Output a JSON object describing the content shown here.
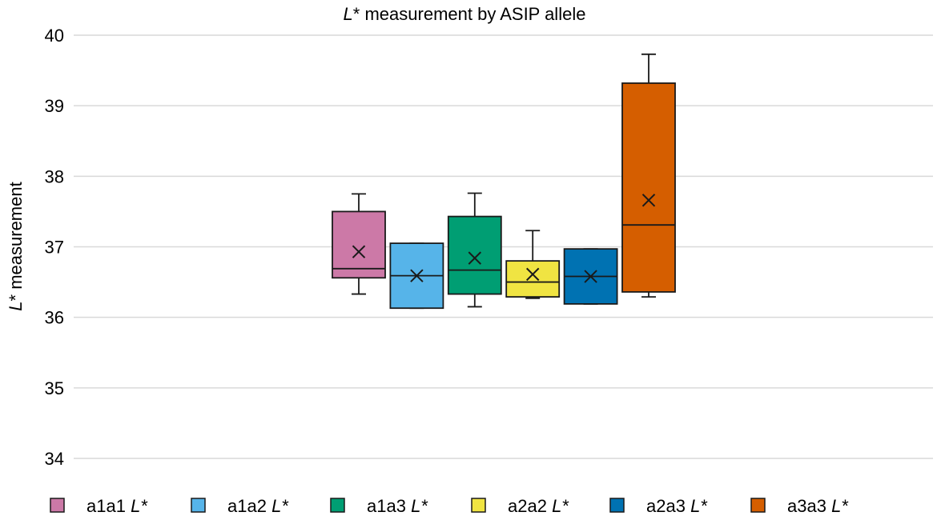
{
  "chart_data": {
    "type": "box",
    "title": {
      "italic": "L",
      "rest": "* measurement by ASIP allele"
    },
    "ylabel": {
      "italic": "L",
      "rest": "* measurement"
    },
    "ylim": [
      34,
      40
    ],
    "yticks": [
      34,
      35,
      36,
      37,
      38,
      39,
      40
    ],
    "grid": true,
    "legend_position": "bottom",
    "series": [
      {
        "name": "a1a1",
        "name_suffix": " L*",
        "color": "#CC79A7",
        "whisker_low": 36.33,
        "q1": 36.56,
        "median": 36.69,
        "q3": 37.5,
        "whisker_high": 37.75,
        "mean": 36.93
      },
      {
        "name": "a1a2",
        "name_suffix": " L*",
        "color": "#56B4E9",
        "whisker_low": 36.13,
        "q1": 36.13,
        "median": 36.59,
        "q3": 37.05,
        "whisker_high": 37.05,
        "mean": 36.59
      },
      {
        "name": "a1a3",
        "name_suffix": " L*",
        "color": "#009E73",
        "whisker_low": 36.15,
        "q1": 36.33,
        "median": 36.67,
        "q3": 37.43,
        "whisker_high": 37.76,
        "mean": 36.84
      },
      {
        "name": "a2a2",
        "name_suffix": " L*",
        "color": "#F0E442",
        "whisker_low": 36.27,
        "q1": 36.29,
        "median": 36.5,
        "q3": 36.8,
        "whisker_high": 37.23,
        "mean": 36.61
      },
      {
        "name": "a2a3",
        "name_suffix": " L*",
        "color": "#0072B2",
        "whisker_low": 36.19,
        "q1": 36.19,
        "median": 36.58,
        "q3": 36.97,
        "whisker_high": 36.97,
        "mean": 36.58
      },
      {
        "name": "a3a3",
        "name_suffix": " L*",
        "color": "#D55E00",
        "whisker_low": 36.29,
        "q1": 36.36,
        "median": 37.31,
        "q3": 39.32,
        "whisker_high": 39.73,
        "mean": 37.66
      }
    ]
  }
}
